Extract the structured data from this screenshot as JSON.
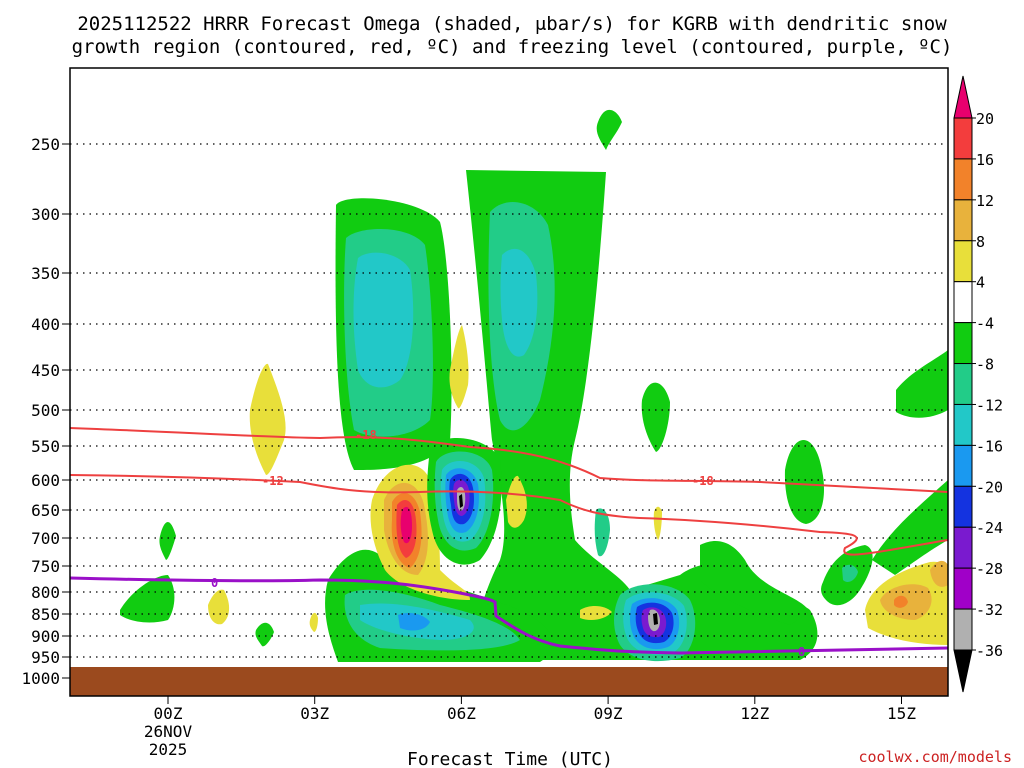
{
  "chart_data": {
    "type": "heatmap",
    "title_line1": "2025112522 HRRR Forecast Omega (shaded, μbar/s) for KGRB with dendritic snow",
    "title_line2": "growth region (contoured, red, ºC) and freezing level (contoured, purple, ºC)",
    "xlabel": "Forecast Time (UTC)",
    "credit": "coolwx.com/models",
    "y_ticks": [
      "250",
      "300",
      "350",
      "400",
      "450",
      "500",
      "550",
      "600",
      "650",
      "700",
      "750",
      "800",
      "850",
      "900",
      "950",
      "1000"
    ],
    "y_values": [
      250,
      300,
      350,
      400,
      450,
      500,
      550,
      600,
      650,
      700,
      750,
      800,
      850,
      900,
      950,
      1000
    ],
    "x_ticks": [
      "00Z",
      "03Z",
      "06Z",
      "09Z",
      "12Z",
      "15Z"
    ],
    "x_hours": [
      0,
      3,
      6,
      9,
      12,
      15
    ],
    "x_date_label": "26NOV",
    "x_year_label": "2025",
    "colorbar_labels": [
      "20",
      "16",
      "12",
      "8",
      "4",
      "-4",
      "-8",
      "-12",
      "-16",
      "-20",
      "-24",
      "-28",
      "-32",
      "-36"
    ],
    "colorbar_colors": [
      "#e8006e",
      "#f33d3d",
      "#f2822a",
      "#e8b23c",
      "#e8df3a",
      "#ffffff",
      "#11cc11",
      "#22cc88",
      "#22c8c8",
      "#1a99f0",
      "#1433e0",
      "#7a1acf",
      "#a000c8",
      "#b0b0b0",
      "#000000"
    ],
    "contour_labels": {
      "dgz_upper": "-18",
      "dgz_lower": "-12",
      "dgz_right": "-18",
      "freezing": "0",
      "freezing_right": "0"
    },
    "contour_colors": {
      "dgz": "#ee4040",
      "freezing": "#9a10c8"
    },
    "ground_color": "#9b4a1e",
    "sample_omega": [
      {
        "hour": 5.0,
        "pressure": 680,
        "value": 12
      },
      {
        "hour": 6.0,
        "pressure": 635,
        "value": -30
      },
      {
        "hour": 10.0,
        "pressure": 855,
        "value": -28
      },
      {
        "hour": 15.0,
        "pressure": 830,
        "value": 8
      },
      {
        "hour": 4.5,
        "pressure": 380,
        "value": -12
      },
      {
        "hour": 7.3,
        "pressure": 390,
        "value": -8
      }
    ]
  }
}
